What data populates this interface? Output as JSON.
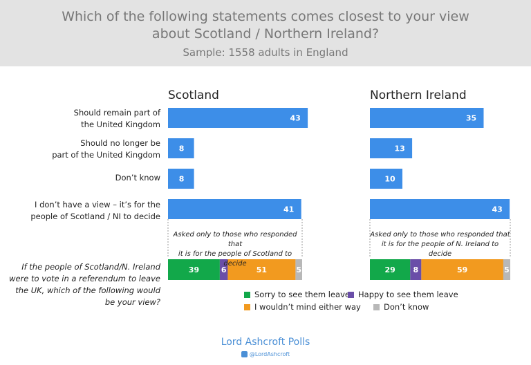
{
  "header": {
    "title_line1": "Which of the following statements comes closest to your view",
    "title_line2": "about Scotland / Northern Ireland?",
    "subtitle": "Sample: 1558 adults in England"
  },
  "row_labels": {
    "remain_line1": "Should remain part of",
    "remain_line2": "the United Kingdom",
    "leave_line1": "Should no longer be",
    "leave_line2": "part of the United Kingdom",
    "dontknow": "Don’t know",
    "noview_line1": "I don’t have a view – it’s for the",
    "noview_line2": "people of Scotland / NI to decide",
    "ref_line1": "If the people of Scotland/N. Ireland",
    "ref_line2": "were to vote in a referendum to leave",
    "ref_line3": "the UK, which of the following would",
    "ref_line4": "be your view?"
  },
  "notes": {
    "scotland_line1": "Asked only to those who responded that",
    "scotland_line2": "it is for the people of Scotland to decide",
    "ni_line1": "Asked only to those who responded that",
    "ni_line2": "it is for the people of N. Ireland to decide"
  },
  "legend": {
    "sorry": "Sorry to see them leave",
    "happy": "Happy to see them leave",
    "wouldnt_mind": "I wouldn’t mind either way",
    "dont_know": "Don’t know"
  },
  "colors": {
    "bar": "#3d8ee8",
    "sorry": "#12a84a",
    "happy": "#6a4ea8",
    "wouldnt_mind": "#f29a1f",
    "dont_know": "#b8b8b8"
  },
  "footer": {
    "brand": "Lord Ashcroft Polls",
    "handle": "@LordAshcroft"
  },
  "chart_data": [
    {
      "type": "bar",
      "title": "Scotland",
      "categories": [
        "Should remain part of the United Kingdom",
        "Should no longer be part of the United Kingdom",
        "Don’t know",
        "I don’t have a view – it’s for the people of Scotland / NI to decide"
      ],
      "values": [
        43,
        8,
        8,
        41
      ],
      "stacked": {
        "category": "If the people of Scotland/N. Ireland were to vote in a referendum to leave the UK, which of the following would be your view?",
        "series": [
          {
            "name": "Sorry to see them leave",
            "value": 39
          },
          {
            "name": "Happy to see them leave",
            "value": 6
          },
          {
            "name": "I wouldn’t mind either way",
            "value": 51
          },
          {
            "name": "Don’t know",
            "value": 5
          }
        ]
      }
    },
    {
      "type": "bar",
      "title": "Northern Ireland",
      "categories": [
        "Should remain part of the United Kingdom",
        "Should no longer be part of the United Kingdom",
        "Don’t know",
        "I don’t have a view – it’s for the people of Scotland / NI to decide"
      ],
      "values": [
        35,
        13,
        10,
        43
      ],
      "stacked": {
        "category": "If the people of Scotland/N. Ireland were to vote in a referendum to leave the UK, which of the following would be your view?",
        "series": [
          {
            "name": "Sorry to see them leave",
            "value": 29
          },
          {
            "name": "Happy to see them leave",
            "value": 8
          },
          {
            "name": "I wouldn’t mind either way",
            "value": 59
          },
          {
            "name": "Don’t know",
            "value": 5
          }
        ]
      }
    }
  ]
}
